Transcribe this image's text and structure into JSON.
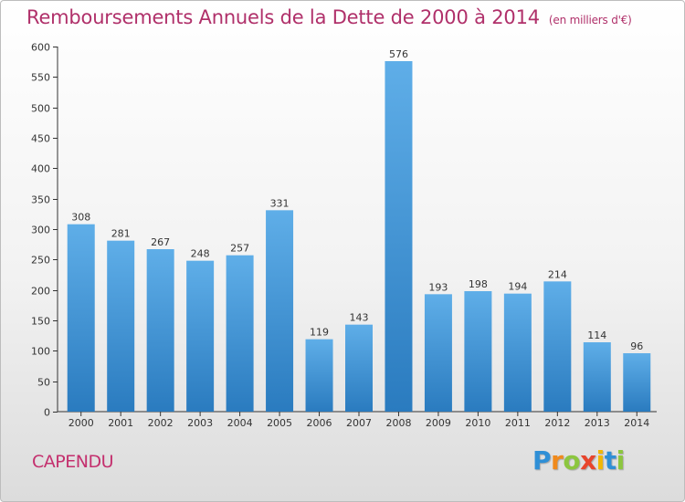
{
  "title": "Remboursements Annuels de la Dette de 2000 à 2014",
  "subtitle": "(en milliers d'€)",
  "location": "CAPENDU",
  "brand": {
    "letters": [
      "P",
      "r",
      "o",
      "x",
      "i",
      "t",
      "i"
    ],
    "colors": [
      "#2f8fd6",
      "#f08a1c",
      "#8cc63f",
      "#e8452c",
      "#f2b705",
      "#2f8fd6",
      "#8cc63f"
    ]
  },
  "colors": {
    "title": "#b0306a",
    "bar_top": "#5faee8",
    "bar_bottom": "#2a7bbf",
    "axis": "#333333",
    "grid": "#dddddd"
  },
  "chart_data": {
    "type": "bar",
    "categories": [
      "2000",
      "2001",
      "2002",
      "2003",
      "2004",
      "2005",
      "2006",
      "2007",
      "2008",
      "2009",
      "2010",
      "2011",
      "2012",
      "2013",
      "2014"
    ],
    "values": [
      308,
      281,
      267,
      248,
      257,
      331,
      119,
      143,
      576,
      193,
      198,
      194,
      214,
      114,
      96
    ],
    "ylim": [
      0,
      600
    ],
    "yticks": [
      0,
      50,
      100,
      150,
      200,
      250,
      300,
      350,
      400,
      450,
      500,
      550,
      600
    ],
    "grid": false,
    "data_labels": true
  }
}
